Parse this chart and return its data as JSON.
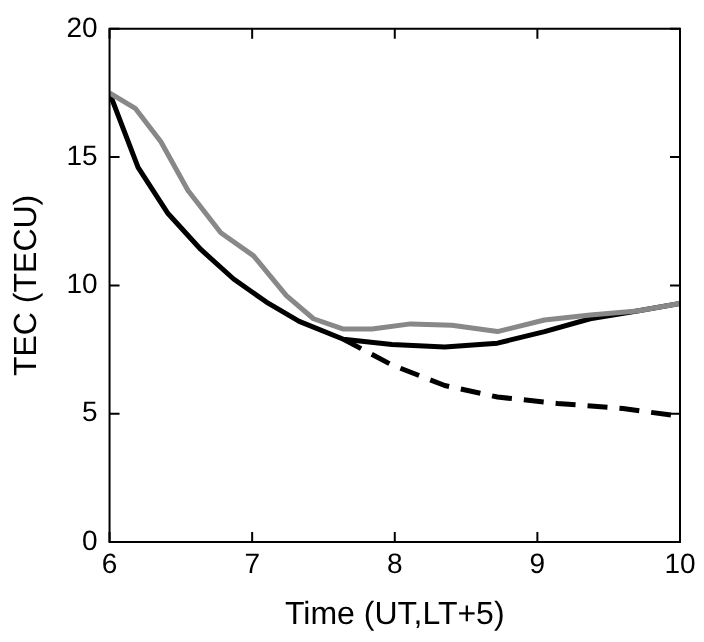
{
  "chart_data": {
    "type": "line",
    "xlabel": "Time (UT,LT+5)",
    "ylabel": "TEC (TECU)",
    "xlim": [
      6,
      10
    ],
    "xticks": [
      6,
      7,
      8,
      9,
      10
    ],
    "ylim": [
      0,
      20
    ],
    "yticks": [
      0,
      5,
      10,
      15,
      20
    ],
    "grid": false,
    "legend": false,
    "marker": "none",
    "series": [
      {
        "color": "#888888",
        "line_style": "solid",
        "x": [
          6,
          6.18,
          6.36,
          6.55,
          6.78,
          7.01,
          7.24,
          7.43,
          7.64,
          7.84,
          8.11,
          8.4,
          8.72,
          9.05,
          9.37,
          9.7,
          10
        ],
        "values": [
          17.5,
          16.9,
          15.6,
          13.7,
          12.05,
          11.15,
          9.6,
          8.7,
          8.3,
          8.3,
          8.5,
          8.45,
          8.2,
          8.65,
          8.85,
          9.0,
          9.3
        ]
      },
      {
        "color": "#000000",
        "line_style": "solid",
        "x": [
          6,
          6.2,
          6.41,
          6.64,
          6.87,
          7.1,
          7.33,
          7.64,
          7.98,
          8.35,
          8.72,
          9.05,
          9.37,
          9.7,
          10
        ],
        "values": [
          17.5,
          14.6,
          12.8,
          11.4,
          10.25,
          9.35,
          8.6,
          7.9,
          7.7,
          7.6,
          7.75,
          8.2,
          8.7,
          9.0,
          9.3
        ]
      },
      {
        "color": "#000000",
        "line_style": "dashed",
        "x": [
          7.64,
          7.98,
          8.35,
          8.72,
          9.14,
          9.6,
          10
        ],
        "values": [
          7.9,
          6.9,
          6.1,
          5.65,
          5.4,
          5.2,
          4.9
        ]
      }
    ]
  }
}
